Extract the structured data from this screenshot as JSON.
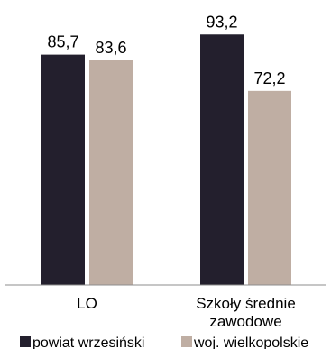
{
  "chart_data": {
    "type": "bar",
    "title": "",
    "xlabel": "",
    "ylabel": "",
    "categories": [
      "LO",
      "Szkoły średnie zawodowe"
    ],
    "category_lines": [
      [
        "LO"
      ],
      [
        "Szkoły średnie",
        "zawodowe"
      ]
    ],
    "series": [
      {
        "name": "powiat wrzesiński",
        "values": [
          85.7,
          93.2
        ],
        "labels": [
          "85,7",
          "93,2"
        ],
        "color": "#231f2d"
      },
      {
        "name": "woj. wielkopolskie",
        "values": [
          83.6,
          72.2
        ],
        "labels": [
          "83,6",
          "72,2"
        ],
        "color": "#bfaea3"
      }
    ],
    "ylim": [
      0,
      100
    ],
    "grid": false,
    "legend": "bottom"
  }
}
